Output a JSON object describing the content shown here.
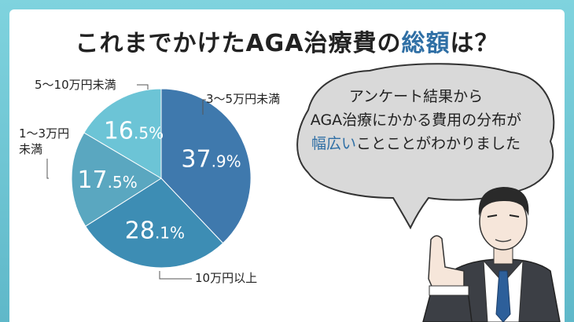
{
  "title": {
    "before": "これまでかけたAGA治療費の",
    "accent": "総額",
    "after": "は？"
  },
  "bubble": {
    "line1": "アンケート結果から",
    "line2": "AGA治療にかかる費用の分布が",
    "line3_accent": "幅広い",
    "line3_rest": "ことことがわかりました"
  },
  "colors": {
    "accent": "#2f6fa5",
    "frame": "#6cc4d2"
  },
  "chart_data": {
    "type": "pie",
    "slices": [
      {
        "label": "3〜5万円未満",
        "value": 37.9,
        "text_int": "37",
        "text_dec": ".9",
        "text_pct": "%",
        "color": "#3f79ad"
      },
      {
        "label": "10万円以上",
        "value": 28.1,
        "text_int": "28",
        "text_dec": ".1",
        "text_pct": "%",
        "color": "#3d8db4"
      },
      {
        "label": "1〜3万円未満",
        "value": 17.5,
        "text_int": "17",
        "text_dec": ".5",
        "text_pct": "%",
        "color": "#5aa7c0"
      },
      {
        "label": "5〜10万円未満",
        "value": 16.5,
        "text_int": "16",
        "text_dec": ".5",
        "text_pct": "%",
        "color": "#6cc4d6"
      }
    ],
    "start_angle": "top",
    "direction": "clockwise"
  },
  "labels": {
    "s0": "3〜5万円未満",
    "s1": "10万円以上",
    "s2_line1": "1〜3万円",
    "s2_line2": "未満",
    "s3": "5〜10万円未満"
  }
}
